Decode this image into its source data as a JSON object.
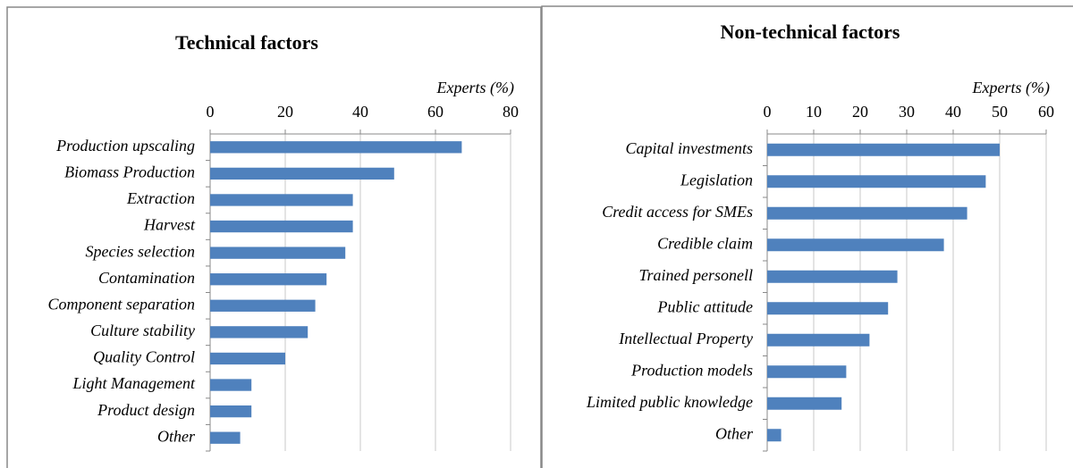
{
  "chart_data": [
    {
      "type": "bar",
      "orientation": "horizontal",
      "title": "Technical factors",
      "x_label": "Experts (%)",
      "categories": [
        "Production upscaling",
        "Biomass Production",
        "Extraction",
        "Harvest",
        "Species selection",
        "Contamination",
        "Component separation",
        "Culture stability",
        "Quality Control",
        "Light Management",
        "Product design",
        "Other"
      ],
      "values": [
        67,
        49,
        38,
        38,
        36,
        31,
        28,
        26,
        20,
        11,
        11,
        8
      ],
      "color": "#4f81bd",
      "xlim": [
        0,
        80
      ],
      "xticks": [
        0,
        20,
        40,
        60,
        80
      ],
      "grid": true
    },
    {
      "type": "bar",
      "orientation": "horizontal",
      "title": "Non-technical factors",
      "x_label": "Experts (%)",
      "categories": [
        "Capital investments",
        "Legislation",
        "Credit access for SMEs",
        "Credible claim",
        "Trained personell",
        "Public attitude",
        "Intellectual Property",
        "Production models",
        "Limited public knowledge",
        "Other"
      ],
      "values": [
        50,
        47,
        43,
        38,
        28,
        26,
        22,
        17,
        16,
        3
      ],
      "color": "#4f81bd",
      "xlim": [
        0,
        60
      ],
      "xticks": [
        0,
        10,
        20,
        30,
        40,
        50,
        60
      ],
      "grid": true
    }
  ]
}
